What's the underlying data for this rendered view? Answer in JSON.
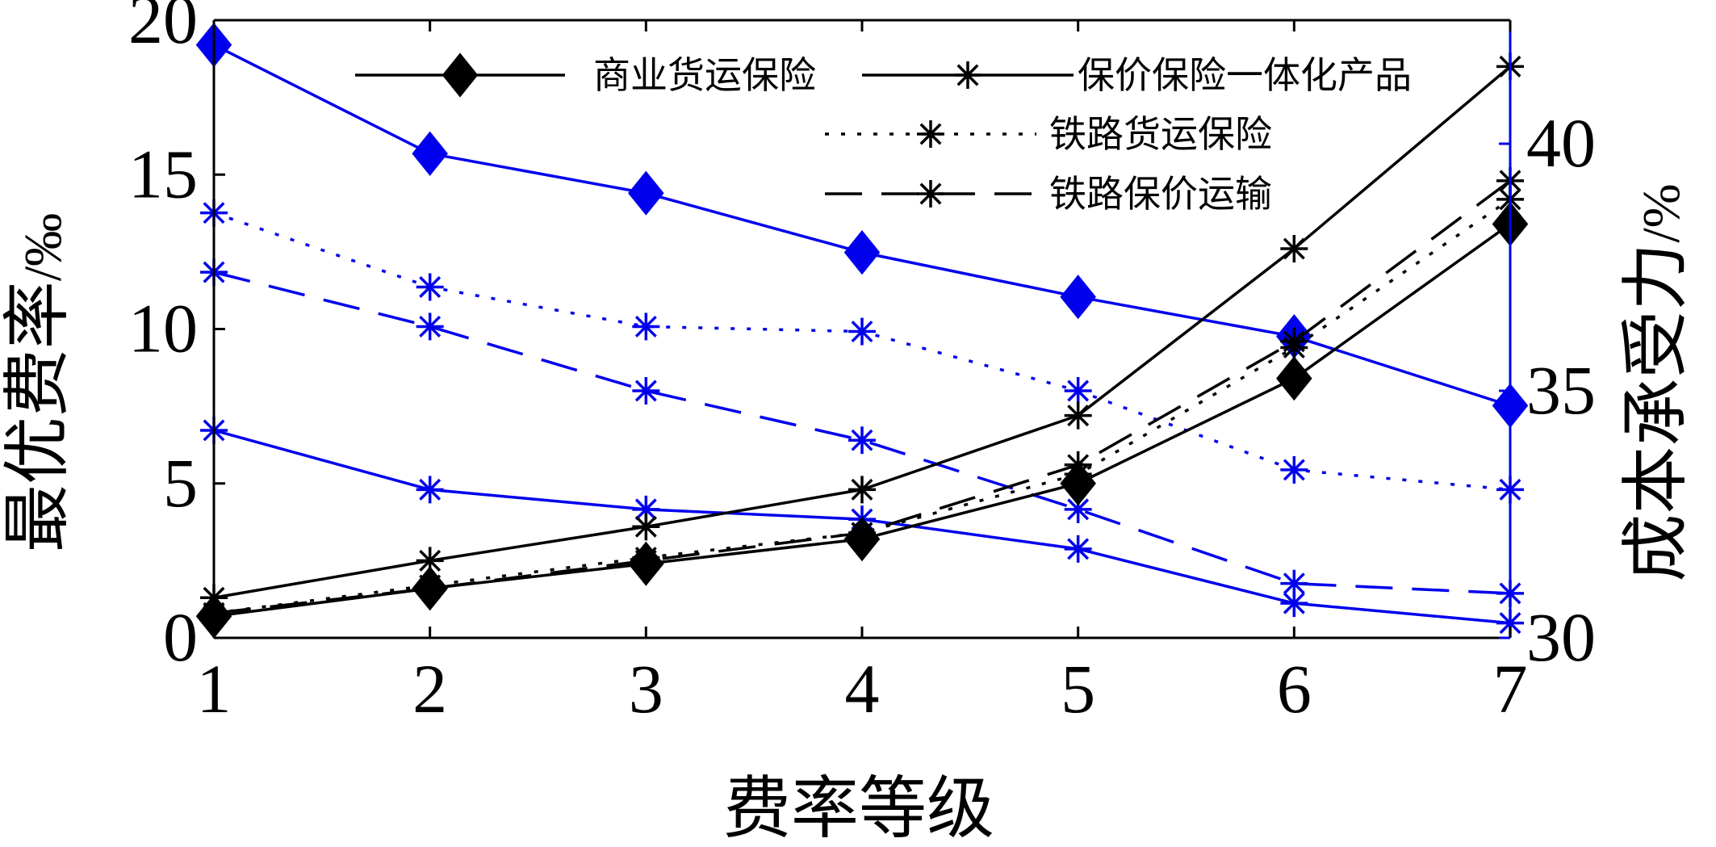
{
  "chart_data": {
    "type": "line",
    "xlabel": "费率等级",
    "ylabel_left": "最优费率",
    "ylabel_left_unit": "/‰",
    "ylabel_right": "成本承受力",
    "ylabel_right_unit": "/%",
    "x": [
      1,
      2,
      3,
      4,
      5,
      6,
      7
    ],
    "xticks": [
      "1",
      "2",
      "3",
      "4",
      "5",
      "6",
      "7"
    ],
    "ylim_left": [
      0,
      20
    ],
    "yticks_left": [
      "0",
      "5",
      "10",
      "15",
      "20"
    ],
    "ylim_right": [
      30,
      42.5
    ],
    "yticks_right": [
      "30",
      "35",
      "40"
    ],
    "grid": false,
    "legend_position": "top",
    "legend": [
      {
        "name": "商业货运保险",
        "linestyle": "solid",
        "marker": "diamond"
      },
      {
        "name": "保价保险一体化产品",
        "linestyle": "solid",
        "marker": "star"
      },
      {
        "name": "铁路货运保险",
        "linestyle": "dotted",
        "marker": "star"
      },
      {
        "name": "铁路保价运输",
        "linestyle": "dashed",
        "marker": "star"
      }
    ],
    "series_left": [
      {
        "name": "商业货运保险",
        "color": "#000000",
        "linestyle": "solid",
        "marker": "diamond",
        "values": [
          0.7,
          1.6,
          2.4,
          3.2,
          5.0,
          8.4,
          13.4
        ]
      },
      {
        "name": "保价保险一体化产品",
        "color": "#000000",
        "linestyle": "solid",
        "marker": "star",
        "values": [
          1.3,
          2.5,
          3.6,
          4.8,
          7.2,
          12.6,
          18.5
        ]
      },
      {
        "name": "铁路货运保险",
        "color": "#000000",
        "linestyle": "dotted",
        "marker": "star",
        "values": [
          0.8,
          1.7,
          2.6,
          3.4,
          5.3,
          9.4,
          14.2
        ]
      },
      {
        "name": "铁路保价运输",
        "color": "#000000",
        "linestyle": "dashed",
        "marker": "star",
        "values": [
          0.8,
          1.6,
          2.5,
          3.4,
          5.6,
          9.6,
          14.8
        ]
      }
    ],
    "series_right": [
      {
        "name": "商业货运保险",
        "color": "#0000ee",
        "linestyle": "solid",
        "marker": "diamond",
        "values": [
          42.0,
          39.8,
          39.0,
          37.8,
          36.9,
          36.1,
          34.7
        ]
      },
      {
        "name": "保价保险一体化产品",
        "color": "#0000ee",
        "linestyle": "solid",
        "marker": "star",
        "values": [
          34.2,
          33.0,
          32.6,
          32.4,
          31.8,
          30.7,
          30.3
        ]
      },
      {
        "name": "铁路货运保险",
        "color": "#0000ee",
        "linestyle": "dotted",
        "marker": "star",
        "values": [
          38.6,
          37.1,
          36.3,
          36.2,
          35.0,
          33.4,
          33.0
        ]
      },
      {
        "name": "铁路保价运输",
        "color": "#0000ee",
        "linestyle": "dashed",
        "marker": "star",
        "values": [
          37.4,
          36.3,
          35.0,
          34.0,
          32.6,
          31.1,
          30.9
        ]
      }
    ]
  }
}
